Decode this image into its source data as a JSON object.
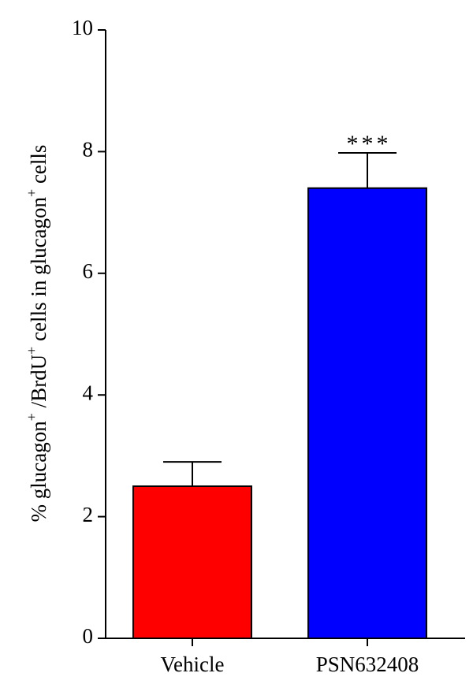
{
  "chart_data": {
    "type": "bar",
    "categories": [
      "Vehicle",
      "PSN632408"
    ],
    "values": [
      2.5,
      7.4
    ],
    "errors": [
      0.4,
      0.58
    ],
    "colors": [
      "#ff0000",
      "#0000ff"
    ],
    "ylabel_parts": {
      "p1": "% glucagon",
      "sup1": "+",
      "p2": " /BrdU",
      "sup2": "+",
      "p3": " cells in glucagon",
      "sup3": "+",
      "p4": " cells"
    },
    "ylim": [
      0,
      10
    ],
    "yticks": [
      0,
      2,
      4,
      6,
      8,
      10
    ],
    "annotations": [
      {
        "category": "PSN632408",
        "text": "***"
      }
    ],
    "grid": false,
    "legend": "none"
  }
}
